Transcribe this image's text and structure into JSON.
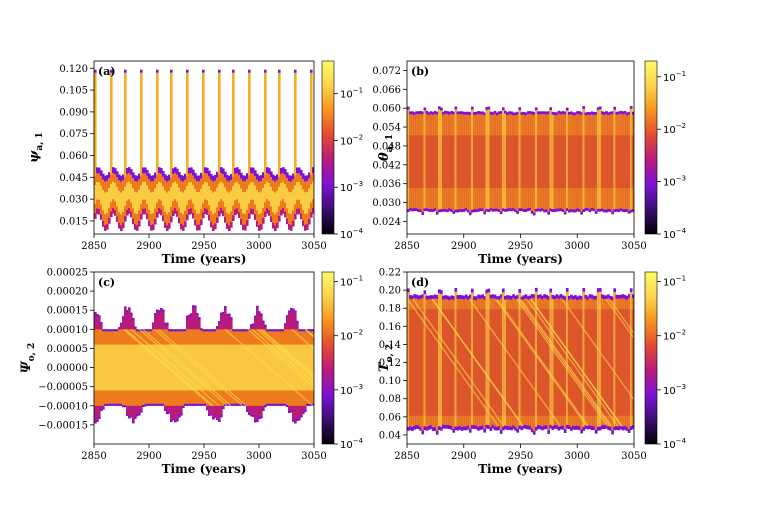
{
  "figure": {
    "colorbar_colors": [
      "#000004",
      "#3b0f70",
      "#7d12d6",
      "#b71c7d",
      "#e34a33",
      "#f7931e",
      "#fcd34d",
      "#fffb67"
    ],
    "density_colors": [
      "#7d12d6",
      "#b71c7d",
      "#d6402a",
      "#ee7a1e",
      "#f8ad24",
      "#fde14c"
    ]
  },
  "chart_data": [
    {
      "type": "heatmap",
      "name": "panel-a",
      "panel_label": "(a)",
      "ylabel_main": "ψ",
      "ylabel_sub": "a, 1",
      "xlabel": "Time (years)",
      "xlim": [
        2850,
        3050
      ],
      "xticks": [
        "2850",
        "2900",
        "2950",
        "3000",
        "3050"
      ],
      "xtick_values": [
        2850,
        2900,
        2950,
        3000,
        3050
      ],
      "ylim": [
        0.006,
        0.125
      ],
      "yticks": [
        "0.015",
        "0.030",
        "0.045",
        "0.060",
        "0.075",
        "0.090",
        "0.105",
        "0.120"
      ],
      "ytick_values": [
        0.015,
        0.03,
        0.045,
        0.06,
        0.075,
        0.09,
        0.105,
        0.12
      ],
      "colorbar": {
        "scale": "log",
        "range": [
          0.0001,
          0.5
        ],
        "ticks": [
          "10^-4",
          "10^-3",
          "10^-2",
          "10^-1"
        ]
      },
      "pattern": "spikes",
      "band": [
        0.018,
        0.045
      ],
      "spike_top": 0.117,
      "period_years": 14
    },
    {
      "type": "heatmap",
      "name": "panel-b",
      "panel_label": "(b)",
      "ylabel_main": "θ",
      "ylabel_sub": "a, 1",
      "xlabel": "Time (years)",
      "xlim": [
        2850,
        3050
      ],
      "xticks": [
        "2850",
        "2900",
        "2950",
        "3000",
        "3050"
      ],
      "xtick_values": [
        2850,
        2900,
        2950,
        3000,
        3050
      ],
      "ylim": [
        0.02,
        0.075
      ],
      "yticks": [
        "0.024",
        "0.030",
        "0.036",
        "0.042",
        "0.048",
        "0.054",
        "0.060",
        "0.066",
        "0.072"
      ],
      "ytick_values": [
        0.024,
        0.03,
        0.036,
        0.042,
        0.048,
        0.054,
        0.06,
        0.066,
        0.072
      ],
      "colorbar": {
        "scale": "log",
        "range": [
          0.0001,
          0.2
        ],
        "ticks": [
          "10^-4",
          "10^-3",
          "10^-2",
          "10^-1"
        ]
      },
      "pattern": "band",
      "band": [
        0.028,
        0.058
      ],
      "period_years": 14
    },
    {
      "type": "heatmap",
      "name": "panel-c",
      "panel_label": "(c)",
      "ylabel_main": "Ψ",
      "ylabel_sub": "o, 2",
      "xlabel": "Time (years)",
      "xlim": [
        2850,
        3050
      ],
      "xticks": [
        "2850",
        "2900",
        "2950",
        "3000",
        "3050"
      ],
      "xtick_values": [
        2850,
        2900,
        2950,
        3000,
        3050
      ],
      "ylim": [
        -0.0002,
        0.00025
      ],
      "yticks": [
        "−0.00015",
        "−0.00010",
        "−0.00005",
        "0.00000",
        "0.00005",
        "0.00010",
        "0.00015",
        "0.00020",
        "0.00025"
      ],
      "ytick_values": [
        -0.00015,
        -0.0001,
        -5e-05,
        0,
        5e-05,
        0.0001,
        0.00015,
        0.0002,
        0.00025
      ],
      "colorbar": {
        "scale": "log",
        "range": [
          0.0001,
          0.15
        ],
        "ticks": [
          "10^-4",
          "10^-3",
          "10^-2",
          "10^-1"
        ]
      },
      "pattern": "wide",
      "band": [
        -0.0001,
        0.0001
      ],
      "period_years": 14
    },
    {
      "type": "heatmap",
      "name": "panel-d",
      "panel_label": "(d)",
      "ylabel_main": "T",
      "ylabel_sub": "o, 2",
      "xlabel": "Time (years)",
      "xlim": [
        2850,
        3050
      ],
      "xticks": [
        "2850",
        "2900",
        "2950",
        "3000",
        "3050"
      ],
      "xtick_values": [
        2850,
        2900,
        2950,
        3000,
        3050
      ],
      "ylim": [
        0.03,
        0.22
      ],
      "yticks": [
        "0.04",
        "0.06",
        "0.08",
        "0.10",
        "0.12",
        "0.14",
        "0.16",
        "0.18",
        "0.20",
        "0.22"
      ],
      "ytick_values": [
        0.04,
        0.06,
        0.08,
        0.1,
        0.12,
        0.14,
        0.16,
        0.18,
        0.2,
        0.22
      ],
      "colorbar": {
        "scale": "log",
        "range": [
          0.0001,
          0.15
        ],
        "ticks": [
          "10^-4",
          "10^-3",
          "10^-2",
          "10^-1"
        ]
      },
      "pattern": "band",
      "band": [
        0.05,
        0.19
      ],
      "period_years": 14
    }
  ]
}
